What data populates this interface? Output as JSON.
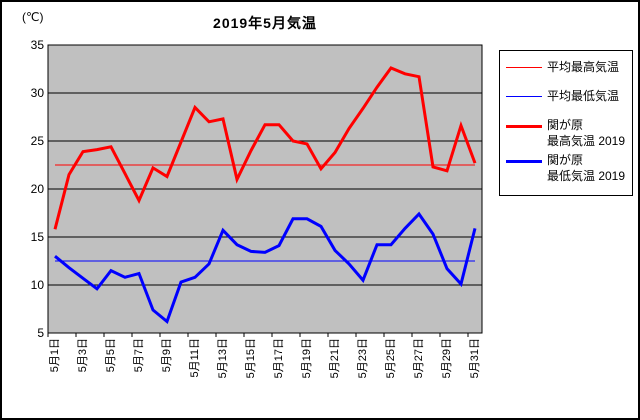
{
  "chart_data": {
    "type": "line",
    "title": "2019年5月気温",
    "y_unit": "(℃)",
    "ylim": [
      5,
      35
    ],
    "y_ticks": [
      35,
      30,
      25,
      20,
      15,
      10,
      5
    ],
    "x_count": 31,
    "x_tick_labels": [
      "5月1日",
      "5月3日",
      "5月5日",
      "5月7日",
      "5月9日",
      "5月11日",
      "5月13日",
      "5月15日",
      "5月17日",
      "5月19日",
      "5月21日",
      "5月23日",
      "5月25日",
      "5月27日",
      "5月29日",
      "5月31日"
    ],
    "grid": true,
    "plot_bg": "#c0c0c0",
    "legend_position": "right",
    "series": [
      {
        "name": "平均最高気温",
        "color": "#ff0000",
        "width": 1,
        "constant": 22.5
      },
      {
        "name": "平均最低気温",
        "color": "#0000ff",
        "width": 1,
        "constant": 12.5
      },
      {
        "name": "関が原 最高気温 2019",
        "color": "#ff0000",
        "width": 3,
        "values": [
          15.8,
          21.5,
          23.9,
          24.1,
          24.4,
          21.6,
          18.8,
          22.2,
          21.3,
          24.9,
          28.5,
          27.0,
          27.3,
          21.0,
          24.0,
          26.7,
          26.7,
          25.0,
          24.7,
          22.1,
          23.8,
          26.3,
          28.4,
          30.6,
          32.6,
          32.0,
          31.7,
          22.3,
          21.9,
          26.6,
          22.7
        ]
      },
      {
        "name": "関が原 最低気温 2019",
        "color": "#0000ff",
        "width": 3,
        "values": [
          13.0,
          11.8,
          10.7,
          9.6,
          11.5,
          10.8,
          11.2,
          7.4,
          6.2,
          10.3,
          10.8,
          12.2,
          15.7,
          14.2,
          13.5,
          13.4,
          14.1,
          16.9,
          16.9,
          16.1,
          13.6,
          12.2,
          10.5,
          14.2,
          14.2,
          15.9,
          17.4,
          15.3,
          11.7,
          10.1,
          15.9
        ]
      }
    ]
  },
  "legend": {
    "items": [
      {
        "label_lines": [
          "平均最高気温"
        ],
        "color": "#ff0000",
        "thick": false
      },
      {
        "label_lines": [
          "平均最低気温"
        ],
        "color": "#0000ff",
        "thick": false
      },
      {
        "label_lines": [
          "関が原",
          "最高気温 2019"
        ],
        "color": "#ff0000",
        "thick": true
      },
      {
        "label_lines": [
          "関が原",
          "最低気温 2019"
        ],
        "color": "#0000ff",
        "thick": true
      }
    ]
  }
}
